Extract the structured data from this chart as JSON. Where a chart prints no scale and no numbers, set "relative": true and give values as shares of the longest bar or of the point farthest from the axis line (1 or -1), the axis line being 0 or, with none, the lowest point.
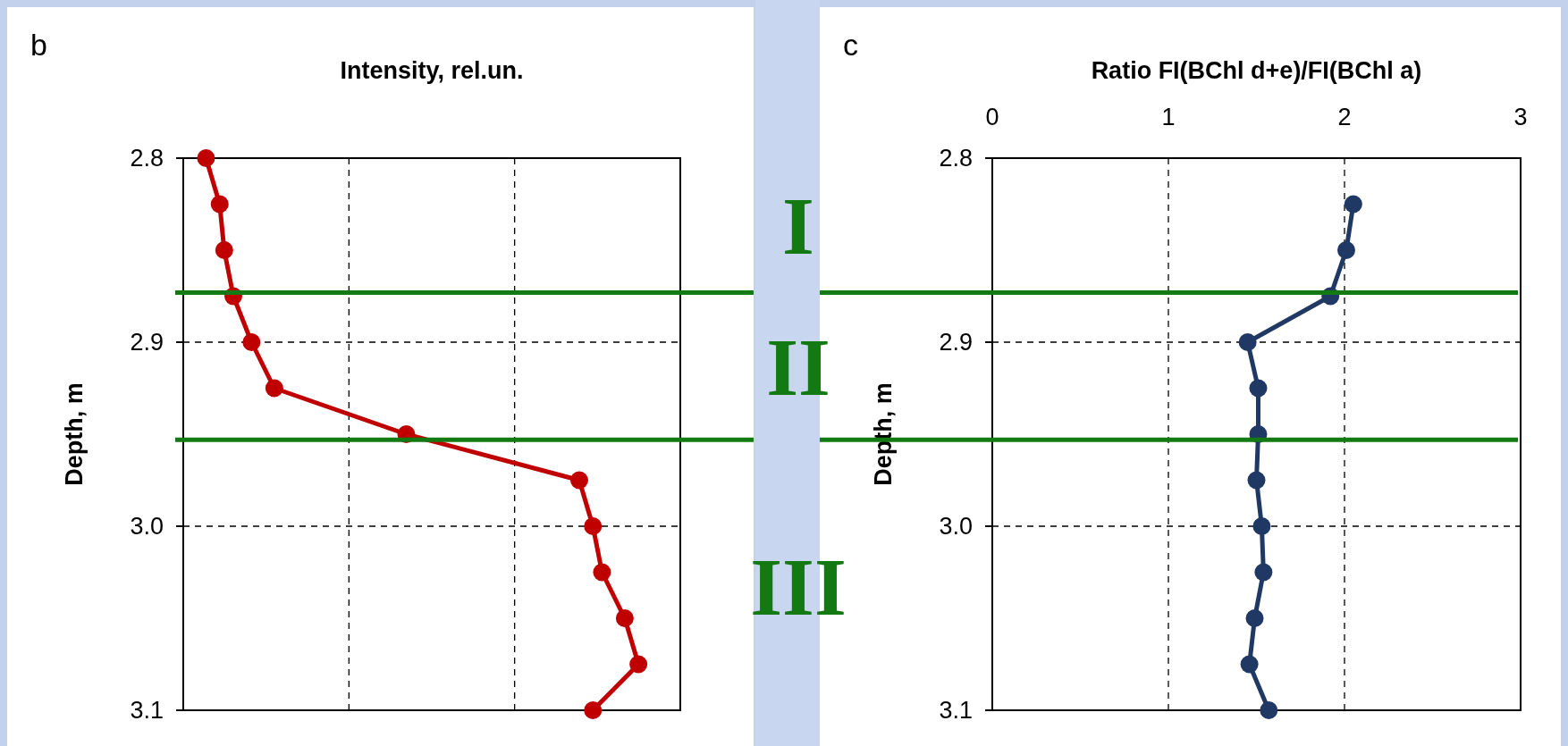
{
  "chart_data": [
    {
      "type": "line",
      "title": "b",
      "xlabel": "Intensity, rel.un.",
      "ylabel": "Depth, m",
      "orientation": "horizontal",
      "relative": true,
      "x": [
        2.8,
        2.825,
        2.85,
        2.875,
        2.9,
        2.925,
        2.95,
        2.975,
        3.0,
        3.025,
        3.05,
        3.075,
        3.1
      ],
      "ylim": [
        3.1,
        2.8
      ],
      "yticks": [
        2.8,
        2.9,
        {
          "value": 3,
          "label": "3.0"
        },
        3.1
      ],
      "grid": true,
      "marker": "circle",
      "line_style": "solid",
      "series": [
        {
          "color": "#c00000",
          "values": [
            0.05,
            0.08,
            0.09,
            0.11,
            0.15,
            0.2,
            0.49,
            0.87,
            0.9,
            0.92,
            0.97,
            1,
            0.9
          ]
        }
      ],
      "ref_lines": [
        {
          "axis": "y",
          "value": 2.873,
          "color": "#137a13"
        },
        {
          "axis": "y",
          "value": 2.953,
          "color": "#137a13"
        }
      ],
      "annotations": [
        "I",
        "II",
        "III"
      ]
    },
    {
      "type": "line",
      "title": "c",
      "xlabel": "Ratio FI(BChl d+e)/FI(BChl a)",
      "ylabel": "Depth, m",
      "orientation": "horizontal",
      "x": [
        2.825,
        2.85,
        2.875,
        2.9,
        2.925,
        2.95,
        2.975,
        3.0,
        3.025,
        3.05,
        3.075,
        3.1
      ],
      "xlim": [
        0,
        3
      ],
      "xticks": [
        0,
        1,
        2,
        3
      ],
      "ylim": [
        3.1,
        2.8
      ],
      "yticks": [
        2.8,
        2.9,
        {
          "value": 3,
          "label": "3.0"
        },
        3.1
      ],
      "grid": true,
      "marker": "circle",
      "line_style": "solid",
      "series": [
        {
          "color": "#1f3864",
          "values": [
            2.05,
            2.01,
            1.92,
            1.45,
            1.51,
            1.51,
            1.5,
            1.53,
            1.54,
            1.49,
            1.46,
            1.57
          ]
        }
      ],
      "ref_lines": [
        {
          "axis": "y",
          "value": 2.873,
          "color": "#137a13"
        },
        {
          "axis": "y",
          "value": 2.953,
          "color": "#137a13"
        }
      ]
    }
  ]
}
